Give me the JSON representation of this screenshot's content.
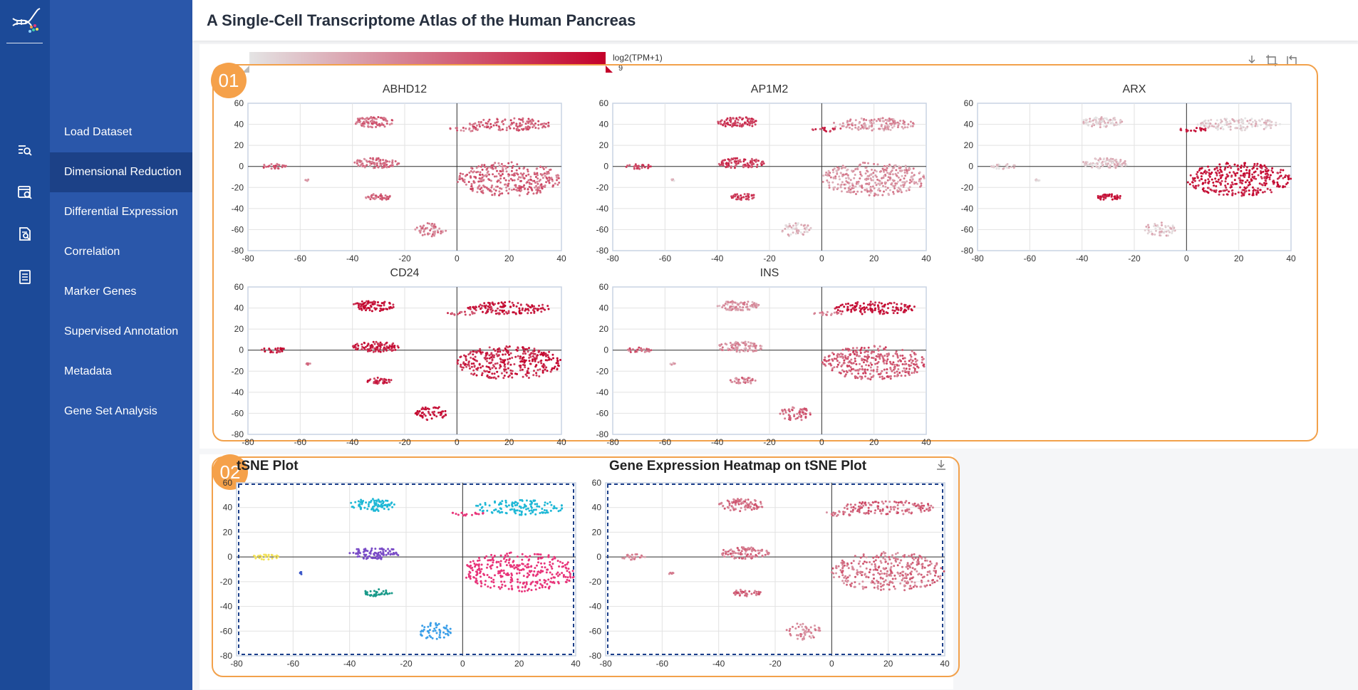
{
  "app": {
    "title": "A Single-Cell Transcriptome Atlas of the Human Pancreas",
    "logo_icon": "dna-cells-logo-icon"
  },
  "rail_icons": [
    "search-list-icon",
    "window-search-icon",
    "document-search-icon",
    "list-document-icon"
  ],
  "nav": {
    "items": [
      {
        "label": "Load Dataset",
        "active": false
      },
      {
        "label": "Dimensional Reduction",
        "active": true
      },
      {
        "label": "Differential Expression",
        "active": false
      },
      {
        "label": "Correlation",
        "active": false
      },
      {
        "label": "Marker Genes",
        "active": false
      },
      {
        "label": "Supervised Annotation",
        "active": false
      },
      {
        "label": "Metadata",
        "active": false
      },
      {
        "label": "Gene Set Analysis",
        "active": false
      }
    ]
  },
  "section1": {
    "badge": "01",
    "color_scale": {
      "label": "log2(TPM+1)",
      "max": "9",
      "low_color": "#e4e4e4",
      "high_color": "#c3002a"
    },
    "tools": [
      "download-icon",
      "crop-icon",
      "reset-icon"
    ]
  },
  "section2": {
    "badge": "02",
    "tools": [
      "download-icon"
    ]
  },
  "chart_data": [
    {
      "type": "scatter",
      "title": "ABHD12",
      "xlim": [
        -80,
        40
      ],
      "ylim": [
        -80,
        60
      ],
      "grid": true,
      "intensity": {
        "A": 0.55,
        "B": 0.6,
        "C": 0.5,
        "D": 0.55,
        "E": 0.55,
        "F": 0.6,
        "G": 0.35,
        "H": 0.45,
        "I": 0.5
      }
    },
    {
      "type": "scatter",
      "title": "AP1M2",
      "xlim": [
        -80,
        40
      ],
      "ylim": [
        -80,
        60
      ],
      "grid": true,
      "intensity": {
        "A": 0.75,
        "B": 0.35,
        "C": 0.7,
        "D": 0.35,
        "E": 0.75,
        "F": 0.7,
        "G": 0.15,
        "H": 0.15,
        "I": 0.75
      }
    },
    {
      "type": "scatter",
      "title": "ARX",
      "xlim": [
        -80,
        40
      ],
      "ylim": [
        -80,
        60
      ],
      "grid": true,
      "intensity": {
        "A": 0.12,
        "B": 0.12,
        "C": 0.12,
        "D": 0.9,
        "E": 0.95,
        "F": 0.1,
        "G": 0.1,
        "H": 0.15,
        "I": 0.9
      }
    },
    {
      "type": "scatter",
      "title": "CD24",
      "xlim": [
        -80,
        40
      ],
      "ylim": [
        -80,
        60
      ],
      "grid": true,
      "intensity": {
        "A": 0.9,
        "B": 0.9,
        "C": 0.9,
        "D": 0.85,
        "E": 0.85,
        "F": 0.9,
        "G": 0.5,
        "H": 0.95,
        "I": 0.7
      }
    },
    {
      "type": "scatter",
      "title": "INS",
      "xlim": [
        -80,
        40
      ],
      "ylim": [
        -80,
        60
      ],
      "grid": true,
      "intensity": {
        "A": 0.35,
        "B": 0.95,
        "C": 0.35,
        "D": 0.6,
        "E": 0.45,
        "F": 0.55,
        "G": 0.3,
        "H": 0.55,
        "I": 0.5
      }
    },
    {
      "type": "scatter",
      "title": "tSNE Plot",
      "xlim": [
        -80,
        40
      ],
      "ylim": [
        -80,
        60
      ],
      "grid": true,
      "colors": {
        "A": "#1fb8d6",
        "B": "#1fb8d6",
        "C": "#7a4cc7",
        "D": "#e8357a",
        "E": "#1a9a8a",
        "F": "#f2e25a",
        "G": "#3a56c9",
        "H": "#3a9ee8",
        "I": "#e8357a"
      }
    },
    {
      "type": "scatter",
      "title": "Gene Expression Heatmap on tSNE Plot",
      "xlim": [
        -80,
        40
      ],
      "ylim": [
        -80,
        60
      ],
      "grid": true,
      "intensity": {
        "A": 0.5,
        "B": 0.55,
        "C": 0.5,
        "D": 0.5,
        "E": 0.55,
        "F": 0.4,
        "G": 0.45,
        "H": 0.4,
        "I": 0.5
      }
    }
  ]
}
